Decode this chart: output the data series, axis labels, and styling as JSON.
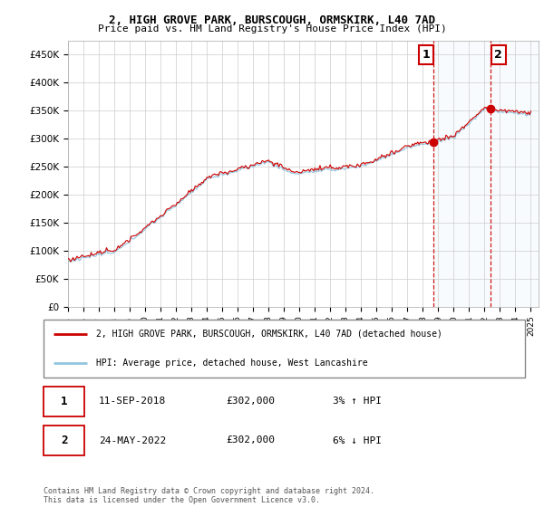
{
  "title": "2, HIGH GROVE PARK, BURSCOUGH, ORMSKIRK, L40 7AD",
  "subtitle": "Price paid vs. HM Land Registry's House Price Index (HPI)",
  "ylabel_ticks": [
    "£0",
    "£50K",
    "£100K",
    "£150K",
    "£200K",
    "£250K",
    "£300K",
    "£350K",
    "£400K",
    "£450K"
  ],
  "ytick_values": [
    0,
    50000,
    100000,
    150000,
    200000,
    250000,
    300000,
    350000,
    400000,
    450000
  ],
  "ylim": [
    0,
    475000
  ],
  "xlim_start": 1995.0,
  "xlim_end": 2025.5,
  "xtick_years": [
    1995,
    1996,
    1997,
    1998,
    1999,
    2000,
    2001,
    2002,
    2003,
    2004,
    2005,
    2006,
    2007,
    2008,
    2009,
    2010,
    2011,
    2012,
    2013,
    2014,
    2015,
    2016,
    2017,
    2018,
    2019,
    2020,
    2021,
    2022,
    2023,
    2024,
    2025
  ],
  "hpi_color": "#92C5DE",
  "price_color": "#CC0000",
  "vline1_x": 2018.7,
  "vline2_x": 2022.4,
  "sale1_value": 302000,
  "sale2_value": 302000,
  "legend_label_price": "2, HIGH GROVE PARK, BURSCOUGH, ORMSKIRK, L40 7AD (detached house)",
  "legend_label_hpi": "HPI: Average price, detached house, West Lancashire",
  "note1_date": "11-SEP-2018",
  "note1_price": "£302,000",
  "note1_hpi": "3% ↑ HPI",
  "note2_date": "24-MAY-2022",
  "note2_price": "£302,000",
  "note2_hpi": "6% ↓ HPI",
  "footer": "Contains HM Land Registry data © Crown copyright and database right 2024.\nThis data is licensed under the Open Government Licence v3.0.",
  "background_color": "#FFFFFF",
  "grid_color": "#CCCCCC",
  "span_color": "#D6EAF8"
}
